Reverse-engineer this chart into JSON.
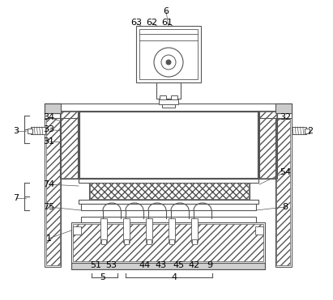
{
  "bg_color": "#ffffff",
  "line_color": "#555555",
  "figsize": [
    4.11,
    3.71
  ],
  "dpi": 100,
  "labels": [
    [
      "6",
      205,
      14
    ],
    [
      "63",
      168,
      28
    ],
    [
      "62",
      187,
      28
    ],
    [
      "61",
      206,
      28
    ],
    [
      "34",
      60,
      145
    ],
    [
      "3",
      20,
      162
    ],
    [
      "33",
      60,
      160
    ],
    [
      "31",
      60,
      175
    ],
    [
      "32",
      352,
      145
    ],
    [
      "2",
      383,
      162
    ],
    [
      "54",
      352,
      213
    ],
    [
      "74",
      60,
      228
    ],
    [
      "7",
      20,
      245
    ],
    [
      "75",
      60,
      256
    ],
    [
      "8",
      352,
      256
    ],
    [
      "1",
      60,
      295
    ],
    [
      "51",
      118,
      328
    ],
    [
      "53",
      137,
      328
    ],
    [
      "5",
      127,
      343
    ],
    [
      "44",
      179,
      328
    ],
    [
      "43",
      198,
      328
    ],
    [
      "45",
      220,
      328
    ],
    [
      "42",
      240,
      328
    ],
    [
      "9",
      259,
      328
    ],
    [
      "4",
      215,
      343
    ]
  ]
}
